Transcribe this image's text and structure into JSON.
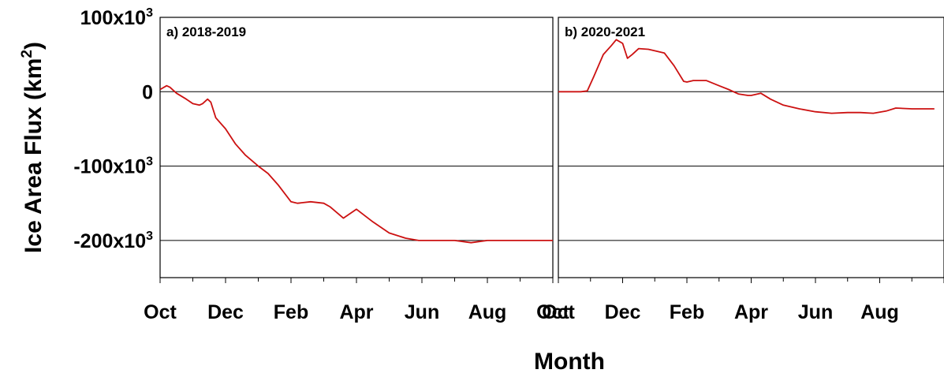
{
  "chart_data": {
    "type": "line",
    "ylabel": "Ice Area Flux (km2)",
    "ylabel_parts": {
      "base": "Ice Area Flux (km",
      "sup": "2",
      "close": ")"
    },
    "xlabel": "Month",
    "ylim": [
      -250000,
      100000
    ],
    "y_ticks": [
      {
        "value": 100000,
        "base": "100x10",
        "sup": "3"
      },
      {
        "value": 0,
        "base": "0",
        "sup": ""
      },
      {
        "value": -100000,
        "base": "-100x10",
        "sup": "3"
      },
      {
        "value": -200000,
        "base": "-200x10",
        "sup": "3"
      }
    ],
    "gridlines": [
      0,
      -100000,
      -200000
    ],
    "x_tick_labels": [
      "Oct",
      "Dec",
      "Feb",
      "Apr",
      "Jun",
      "Aug",
      "Oct"
    ],
    "x_range_months": [
      0,
      12
    ],
    "line_color": "#cc1111",
    "panels": [
      {
        "label": "a) 2018-2019",
        "x_tick_labels": [
          "Oct",
          "Dec",
          "Feb",
          "Apr",
          "Jun",
          "Aug",
          "Oct"
        ],
        "series": [
          {
            "x_month": [
              0,
              0.2,
              0.3,
              0.5,
              0.8,
              1.0,
              1.2,
              1.3,
              1.45,
              1.55,
              1.7,
              2.0,
              2.3,
              2.6,
              3.0,
              3.3,
              3.6,
              4.0,
              4.2,
              4.6,
              5.0,
              5.2,
              5.6,
              6.0,
              6.5,
              7.0,
              7.5,
              7.9,
              8.2,
              8.5,
              9.0,
              9.5,
              10.0,
              11.0,
              12.0
            ],
            "y": [
              3000,
              8000,
              6000,
              -2000,
              -10000,
              -16000,
              -18000,
              -16000,
              -10000,
              -14000,
              -35000,
              -50000,
              -70000,
              -85000,
              -100000,
              -110000,
              -125000,
              -148000,
              -150000,
              -148000,
              -150000,
              -155000,
              -170000,
              -158000,
              -175000,
              -190000,
              -197000,
              -200000,
              -200000,
              -200000,
              -200000,
              -203000,
              -200000,
              -200000,
              -200000
            ]
          }
        ]
      },
      {
        "label": "b) 2020-2021",
        "x_tick_labels": [
          "Oct",
          "Dec",
          "Feb",
          "Apr",
          "Jun",
          "Aug"
        ],
        "series": [
          {
            "x_month": [
              0,
              0.7,
              0.9,
              1.1,
              1.4,
              1.65,
              1.8,
              2.0,
              2.15,
              2.3,
              2.5,
              2.8,
              3.0,
              3.3,
              3.6,
              3.9,
              4.0,
              4.2,
              4.6,
              5.0,
              5.3,
              5.6,
              5.9,
              6.0,
              6.3,
              6.6,
              7.0,
              7.5,
              8.0,
              8.5,
              9.0,
              9.4,
              9.8,
              10.2,
              10.5,
              11.0,
              11.4,
              11.7
            ],
            "y": [
              0,
              0,
              1000,
              20000,
              50000,
              62000,
              70000,
              65000,
              45000,
              50000,
              58000,
              57000,
              55000,
              52000,
              35000,
              14000,
              13000,
              15000,
              15000,
              8000,
              3000,
              -3000,
              -5000,
              -5000,
              -2000,
              -10000,
              -18000,
              -23000,
              -27000,
              -29000,
              -28000,
              -28000,
              -29000,
              -26000,
              -22000,
              -23000,
              -23000,
              -23000
            ]
          }
        ]
      }
    ]
  }
}
